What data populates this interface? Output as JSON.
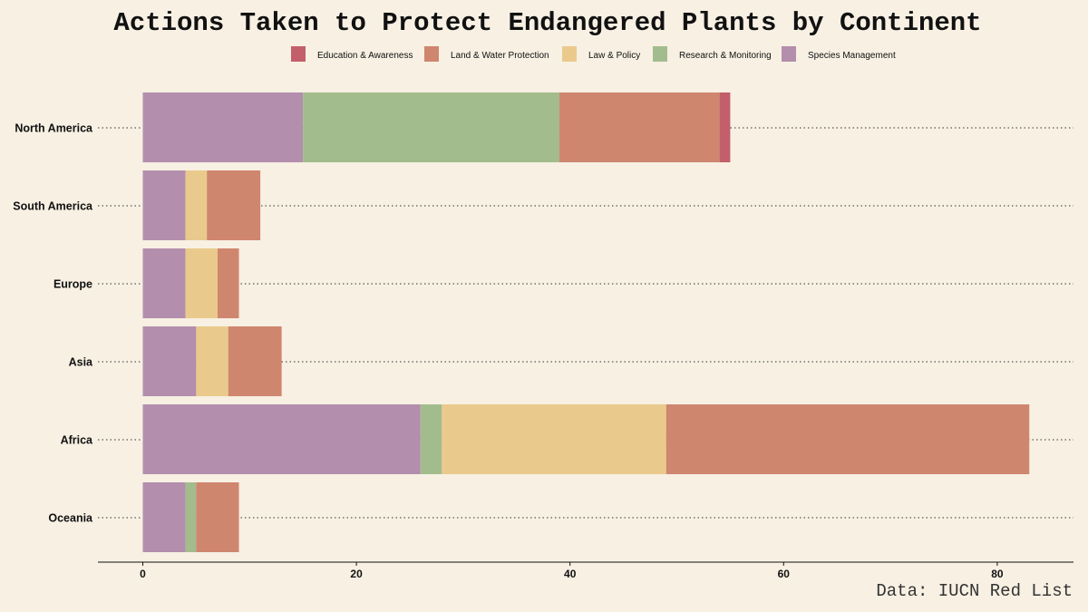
{
  "chart_data": {
    "type": "bar",
    "orientation": "horizontal",
    "stacked": true,
    "title": "Actions Taken to Protect Endangered Plants by Continent",
    "caption": "Data: IUCN Red List",
    "xlabel": "",
    "ylabel": "",
    "xlim": [
      0,
      85
    ],
    "xticks": [
      0,
      20,
      40,
      60,
      80
    ],
    "legend_position": "top",
    "categories": [
      "North America",
      "South America",
      "Europe",
      "Asia",
      "Africa",
      "Oceania"
    ],
    "stack_order": [
      "Species Management",
      "Research & Monitoring",
      "Law & Policy",
      "Land & Water Protection",
      "Education & Awareness"
    ],
    "series": [
      {
        "name": "Education & Awareness",
        "color": "#c25f6a",
        "values": [
          1,
          0,
          0,
          0,
          0,
          0
        ]
      },
      {
        "name": "Land & Water Protection",
        "color": "#cf866e",
        "values": [
          15,
          5,
          2,
          5,
          34,
          4
        ]
      },
      {
        "name": "Law & Policy",
        "color": "#eaca8c",
        "values": [
          0,
          2,
          3,
          3,
          21,
          0
        ]
      },
      {
        "name": "Research & Monitoring",
        "color": "#a3bc8d",
        "values": [
          24,
          0,
          0,
          0,
          2,
          1
        ]
      },
      {
        "name": "Species Management",
        "color": "#b48ead",
        "values": [
          15,
          4,
          4,
          5,
          26,
          4
        ]
      }
    ],
    "grid": "dotted horizontal lines per category"
  }
}
